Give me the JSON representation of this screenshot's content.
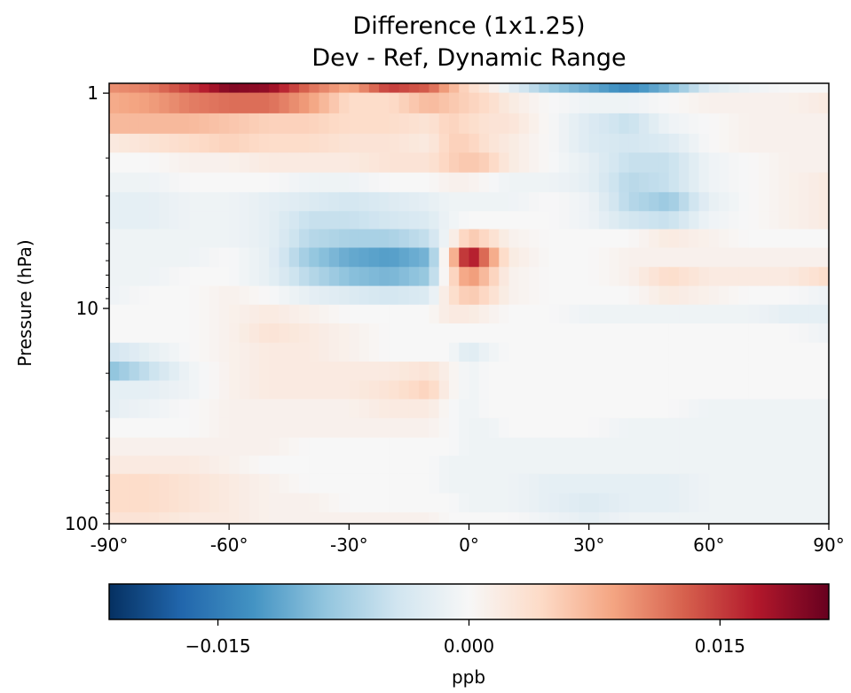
{
  "chart_data": {
    "type": "heatmap",
    "title": "Difference (1x1.25)",
    "subtitle": "Dev - Ref, Dynamic Range",
    "ylabel": "Pressure (hPa)",
    "xlabel": "",
    "x_range": [
      -90,
      90
    ],
    "y_range": [
      100,
      0.9
    ],
    "y_scale": "log",
    "y_inverted": true,
    "x_ticks": [
      {
        "value": -90,
        "label": "-90°"
      },
      {
        "value": -60,
        "label": "-60°"
      },
      {
        "value": -30,
        "label": "-30°"
      },
      {
        "value": 0,
        "label": "0°"
      },
      {
        "value": 30,
        "label": "30°"
      },
      {
        "value": 60,
        "label": "60°"
      },
      {
        "value": 90,
        "label": "90°"
      }
    ],
    "y_ticks": [
      {
        "value": 1,
        "label": "1"
      },
      {
        "value": 10,
        "label": "10"
      },
      {
        "value": 100,
        "label": "100"
      }
    ],
    "colormap": "RdBu_r",
    "colormap_stops": [
      "#053061",
      "#2166ac",
      "#4393c3",
      "#92c5de",
      "#d1e5f0",
      "#f7f7f7",
      "#fddbc7",
      "#f4a582",
      "#d6604d",
      "#b2182b",
      "#67001f"
    ],
    "colorbar": {
      "range": [
        -0.0215,
        0.0215
      ],
      "ticks": [
        {
          "value": -0.015,
          "label": "−0.015"
        },
        {
          "value": 0.0,
          "label": "0.000"
        },
        {
          "value": 0.015,
          "label": "0.015"
        }
      ],
      "label": "ppb",
      "orientation": "horizontal"
    },
    "levels": [
      0.9,
      1.1,
      1.4,
      1.7,
      2.1,
      2.6,
      3.2,
      3.9,
      4.7,
      5.8,
      7.1,
      8.7,
      10.6,
      13,
      16,
      19.5,
      24,
      29,
      36,
      44,
      53,
      65,
      80,
      98
    ],
    "lat_nodes": [
      -90,
      -80,
      -70,
      -60,
      -50,
      -40,
      -30,
      -20,
      -10,
      -5,
      0,
      5,
      10,
      20,
      30,
      40,
      50,
      60,
      70,
      80,
      90
    ],
    "values": [
      [
        0.01,
        0.011,
        0.015,
        0.02,
        0.019,
        0.012,
        0.008,
        0.015,
        0.013,
        0.008,
        0.004,
        0.002,
        -0.002,
        -0.008,
        -0.011,
        -0.014,
        -0.01,
        -0.003,
        -0.001,
        0.0,
        0.0
      ],
      [
        0.008,
        0.009,
        0.011,
        0.012,
        0.012,
        0.009,
        0.004,
        0.004,
        0.007,
        0.006,
        0.005,
        0.004,
        0.002,
        0.0,
        -0.001,
        -0.001,
        0.0,
        0.001,
        0.001,
        0.001,
        0.002
      ],
      [
        0.007,
        0.007,
        0.007,
        0.006,
        0.005,
        0.005,
        0.004,
        0.004,
        0.003,
        0.005,
        0.004,
        0.003,
        0.003,
        0.0,
        -0.003,
        -0.005,
        -0.001,
        0.0,
        0.001,
        0.001,
        0.001
      ],
      [
        0.002,
        0.003,
        0.004,
        0.005,
        0.004,
        0.004,
        0.003,
        0.003,
        0.002,
        0.005,
        0.005,
        0.003,
        0.002,
        0.0,
        -0.003,
        -0.004,
        -0.003,
        0.0,
        0.001,
        0.001,
        0.001
      ],
      [
        0.0,
        0.0,
        0.001,
        0.001,
        0.002,
        0.002,
        0.002,
        0.003,
        0.003,
        0.005,
        0.006,
        0.005,
        0.002,
        0.0,
        -0.002,
        -0.005,
        -0.005,
        -0.001,
        0.0,
        0.001,
        0.001
      ],
      [
        -0.001,
        -0.001,
        0.0,
        0.0,
        0.0,
        -0.001,
        -0.001,
        0.0,
        0.0,
        0.001,
        0.001,
        0.0,
        -0.001,
        -0.001,
        -0.002,
        -0.006,
        -0.005,
        -0.001,
        0.0,
        0.001,
        0.002
      ],
      [
        -0.002,
        -0.002,
        -0.001,
        -0.001,
        -0.002,
        -0.003,
        -0.004,
        -0.003,
        -0.002,
        -0.001,
        -0.001,
        -0.001,
        -0.001,
        0.0,
        -0.001,
        -0.006,
        -0.008,
        -0.002,
        0.0,
        0.001,
        0.002
      ],
      [
        -0.002,
        -0.002,
        -0.001,
        -0.001,
        -0.002,
        -0.005,
        -0.005,
        -0.004,
        -0.003,
        -0.001,
        0.0,
        0.0,
        0.0,
        0.0,
        -0.001,
        -0.004,
        -0.005,
        -0.001,
        0.0,
        0.001,
        0.002
      ],
      [
        -0.001,
        -0.001,
        -0.001,
        -0.001,
        -0.002,
        -0.006,
        -0.007,
        -0.007,
        -0.005,
        0.0,
        0.006,
        0.004,
        0.001,
        0.0,
        0.0,
        0.0,
        0.002,
        0.001,
        0.0,
        0.0,
        0.0
      ],
      [
        -0.001,
        -0.001,
        -0.001,
        0.0,
        -0.002,
        -0.008,
        -0.011,
        -0.012,
        -0.01,
        0.004,
        0.019,
        0.01,
        0.002,
        0.0,
        0.0,
        0.001,
        0.001,
        0.001,
        0.001,
        0.001,
        0.001
      ],
      [
        -0.001,
        -0.001,
        0.0,
        0.0,
        -0.002,
        -0.006,
        -0.009,
        -0.01,
        -0.008,
        0.003,
        0.01,
        0.006,
        0.001,
        0.0,
        0.0,
        0.001,
        0.004,
        0.002,
        0.002,
        0.002,
        0.004
      ],
      [
        -0.001,
        0.0,
        0.0,
        0.001,
        0.0,
        -0.002,
        -0.003,
        -0.004,
        -0.003,
        0.003,
        0.006,
        0.004,
        0.001,
        0.0,
        0.0,
        0.0,
        0.002,
        0.001,
        0.0,
        0.0,
        -0.001
      ],
      [
        0.0,
        0.0,
        0.0,
        0.001,
        0.002,
        0.001,
        0.0,
        0.0,
        0.0,
        0.002,
        0.002,
        0.001,
        0.0,
        0.0,
        -0.001,
        -0.001,
        -0.001,
        -0.001,
        -0.001,
        -0.002,
        -0.002
      ],
      [
        0.0,
        0.0,
        0.0,
        0.001,
        0.003,
        0.002,
        0.001,
        0.0,
        0.0,
        0.0,
        0.0,
        0.0,
        0.0,
        0.0,
        0.0,
        0.0,
        0.0,
        0.0,
        0.0,
        0.0,
        -0.001
      ],
      [
        -0.004,
        -0.002,
        0.0,
        0.001,
        0.002,
        0.002,
        0.001,
        0.0,
        0.0,
        0.0,
        -0.003,
        -0.001,
        0.0,
        0.0,
        0.0,
        0.0,
        0.0,
        0.0,
        0.0,
        0.0,
        0.0
      ],
      [
        -0.009,
        -0.005,
        -0.001,
        0.001,
        0.002,
        0.002,
        0.002,
        0.002,
        0.003,
        0.001,
        -0.001,
        0.0,
        0.0,
        0.0,
        0.0,
        0.0,
        0.0,
        0.0,
        0.0,
        0.0,
        0.0
      ],
      [
        -0.002,
        -0.002,
        -0.001,
        0.001,
        0.002,
        0.002,
        0.002,
        0.003,
        0.005,
        0.001,
        -0.001,
        0.0,
        0.0,
        0.0,
        0.0,
        0.0,
        0.0,
        0.0,
        0.0,
        0.0,
        0.0
      ],
      [
        -0.002,
        -0.001,
        0.0,
        0.001,
        0.001,
        0.001,
        0.001,
        0.002,
        0.002,
        0.0,
        -0.001,
        0.0,
        0.0,
        0.0,
        0.0,
        0.0,
        0.0,
        -0.001,
        -0.001,
        -0.001,
        -0.001
      ],
      [
        0.0,
        0.0,
        0.0,
        0.001,
        0.001,
        0.001,
        0.001,
        0.001,
        0.001,
        0.0,
        -0.001,
        -0.001,
        0.0,
        0.0,
        0.0,
        -0.001,
        -0.001,
        -0.001,
        -0.001,
        -0.001,
        -0.001
      ],
      [
        0.001,
        0.001,
        0.001,
        0.001,
        0.001,
        0.0,
        0.0,
        0.0,
        0.0,
        0.0,
        -0.001,
        -0.001,
        -0.001,
        -0.001,
        -0.001,
        -0.001,
        -0.001,
        -0.001,
        -0.001,
        -0.001,
        -0.001
      ],
      [
        0.002,
        0.002,
        0.002,
        0.001,
        0.0,
        0.0,
        0.0,
        0.0,
        0.0,
        -0.001,
        -0.001,
        -0.001,
        -0.001,
        -0.001,
        -0.001,
        -0.001,
        -0.001,
        -0.001,
        -0.001,
        -0.001,
        -0.001
      ],
      [
        0.004,
        0.004,
        0.003,
        0.002,
        0.001,
        0.0,
        0.0,
        0.0,
        0.0,
        -0.001,
        -0.001,
        -0.001,
        -0.001,
        -0.002,
        -0.002,
        -0.002,
        -0.002,
        -0.001,
        -0.001,
        -0.001,
        -0.001
      ],
      [
        0.004,
        0.004,
        0.003,
        0.002,
        0.001,
        0.001,
        0.0,
        0.0,
        0.0,
        0.0,
        -0.001,
        -0.001,
        -0.001,
        -0.002,
        -0.003,
        -0.002,
        -0.002,
        -0.001,
        -0.001,
        -0.001,
        -0.001
      ],
      [
        0.003,
        0.003,
        0.002,
        0.002,
        0.001,
        0.001,
        0.001,
        0.001,
        0.001,
        0.0,
        0.0,
        0.0,
        0.0,
        -0.001,
        -0.002,
        -0.001,
        -0.001,
        -0.001,
        -0.001,
        -0.001,
        -0.001
      ]
    ]
  }
}
